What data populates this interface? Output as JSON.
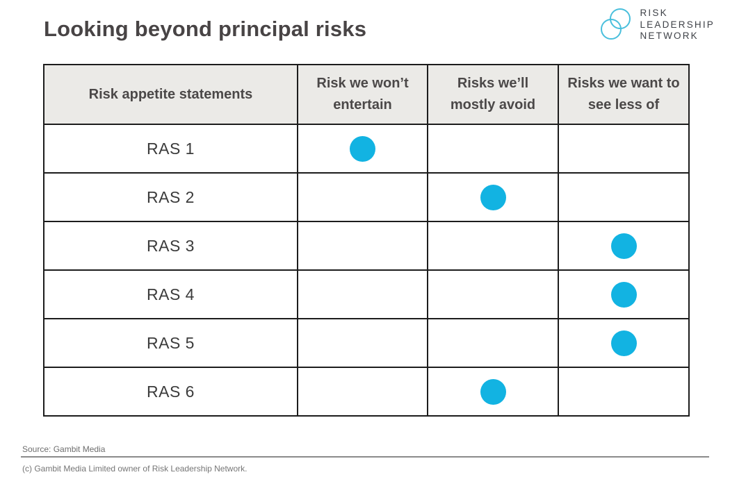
{
  "page": {
    "title": "Looking beyond principal risks"
  },
  "logo": {
    "line1": "RISK",
    "line2": "LEADERSHIP",
    "line3": "NETWORK"
  },
  "table": {
    "headers": [
      "Risk appetite statements",
      "Risk we won’t entertain",
      "Risks we’ll mostly avoid",
      "Risks we want to see less of"
    ],
    "rows": [
      {
        "label": "RAS 1",
        "dots": [
          true,
          false,
          false
        ]
      },
      {
        "label": "RAS 2",
        "dots": [
          false,
          true,
          false
        ]
      },
      {
        "label": "RAS 3",
        "dots": [
          false,
          false,
          true
        ]
      },
      {
        "label": "RAS 4",
        "dots": [
          false,
          false,
          true
        ]
      },
      {
        "label": "RAS 5",
        "dots": [
          false,
          false,
          true
        ]
      },
      {
        "label": "RAS 6",
        "dots": [
          false,
          true,
          false
        ]
      }
    ]
  },
  "footer": {
    "source": "Source: Gambit Media",
    "copyright": "(c) Gambit Media Limited owner of Risk Leadership Network."
  },
  "colors": {
    "dot": "#12B3E2",
    "logo_circles": "#49BFDC",
    "header_bg": "#EBEAE7",
    "table_border": "#1C1C1C"
  },
  "chart_data": {
    "type": "table",
    "title": "Looking beyond principal risks",
    "columns": [
      "Risk appetite statements",
      "Risk we won’t entertain",
      "Risks we’ll mostly avoid",
      "Risks we want to see less of"
    ],
    "rows": [
      "RAS 1",
      "RAS 2",
      "RAS 3",
      "RAS 4",
      "RAS 5",
      "RAS 6"
    ],
    "markers": [
      {
        "row": "RAS 1",
        "column": "Risk we won’t entertain"
      },
      {
        "row": "RAS 2",
        "column": "Risks we’ll mostly avoid"
      },
      {
        "row": "RAS 3",
        "column": "Risks we want to see less of"
      },
      {
        "row": "RAS 4",
        "column": "Risks we want to see less of"
      },
      {
        "row": "RAS 5",
        "column": "Risks we want to see less of"
      },
      {
        "row": "RAS 6",
        "column": "Risks we’ll mostly avoid"
      }
    ],
    "marker_style": "filled-circle",
    "marker_color": "#12B3E2",
    "legend": "none",
    "grid": "on"
  }
}
